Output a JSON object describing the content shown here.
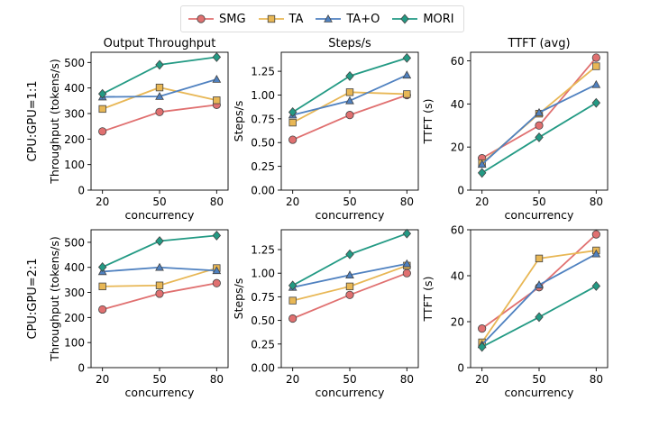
{
  "legend": [
    "SMG",
    "TA",
    "TA+O",
    "MORI"
  ],
  "colors": {
    "SMG": "#e07070",
    "TA": "#e8b755",
    "TA+O": "#4f81c0",
    "MORI": "#239a84"
  },
  "markers": {
    "SMG": "circle",
    "TA": "square",
    "TA+O": "triangle",
    "MORI": "diamond"
  },
  "row_labels": [
    "CPU:GPU=1:1",
    "CPU:GPU=2:1"
  ],
  "chart_data": [
    {
      "type": "line",
      "row": 0,
      "col": 0,
      "title": "Output Throughput",
      "xlabel": "concurrency",
      "ylabel": "Throughput (tokens/s)",
      "x": [
        20,
        50,
        80
      ],
      "xticks": [
        "20",
        "50",
        "80"
      ],
      "ylim": [
        0,
        540
      ],
      "yticks": [
        0,
        100,
        200,
        300,
        400,
        500
      ],
      "series": [
        {
          "name": "SMG",
          "values": [
            230,
            306,
            334
          ]
        },
        {
          "name": "TA",
          "values": [
            318,
            402,
            352
          ]
        },
        {
          "name": "TA+O",
          "values": [
            365,
            367,
            434
          ]
        },
        {
          "name": "MORI",
          "values": [
            377,
            491,
            521
          ]
        }
      ]
    },
    {
      "type": "line",
      "row": 0,
      "col": 1,
      "title": "Steps/s",
      "xlabel": "concurrency",
      "ylabel": "Steps/s",
      "x": [
        20,
        50,
        80
      ],
      "xticks": [
        "20",
        "50",
        "80"
      ],
      "ylim": [
        0,
        1.45
      ],
      "yticks": [
        "0.00",
        "0.25",
        "0.50",
        "0.75",
        "1.00",
        "1.25"
      ],
      "series": [
        {
          "name": "SMG",
          "values": [
            0.53,
            0.79,
            1.0
          ]
        },
        {
          "name": "TA",
          "values": [
            0.71,
            1.03,
            1.01
          ]
        },
        {
          "name": "TA+O",
          "values": [
            0.79,
            0.94,
            1.21
          ]
        },
        {
          "name": "MORI",
          "values": [
            0.82,
            1.2,
            1.39
          ]
        }
      ]
    },
    {
      "type": "line",
      "row": 0,
      "col": 2,
      "title": "TTFT (avg)",
      "xlabel": "concurrency",
      "ylabel": "TTFT (s)",
      "x": [
        20,
        50,
        80
      ],
      "xticks": [
        "20",
        "50",
        "80"
      ],
      "ylim": [
        0,
        64
      ],
      "yticks": [
        0,
        20,
        40,
        60
      ],
      "series": [
        {
          "name": "SMG",
          "values": [
            14.8,
            30.0,
            61.5
          ]
        },
        {
          "name": "TA",
          "values": [
            12.5,
            35.5,
            57.5
          ]
        },
        {
          "name": "TA+O",
          "values": [
            12.0,
            36.0,
            49.0
          ]
        },
        {
          "name": "MORI",
          "values": [
            8.0,
            24.5,
            40.5
          ]
        }
      ]
    },
    {
      "type": "line",
      "row": 1,
      "col": 0,
      "title": "",
      "xlabel": "concurrency",
      "ylabel": "Throughput (tokens/s)",
      "x": [
        20,
        50,
        80
      ],
      "xticks": [
        "20",
        "50",
        "80"
      ],
      "ylim": [
        0,
        550
      ],
      "yticks": [
        0,
        100,
        200,
        300,
        400,
        500
      ],
      "series": [
        {
          "name": "SMG",
          "values": [
            232,
            295,
            337
          ]
        },
        {
          "name": "TA",
          "values": [
            324,
            328,
            397
          ]
        },
        {
          "name": "TA+O",
          "values": [
            383,
            400,
            387
          ]
        },
        {
          "name": "MORI",
          "values": [
            401,
            505,
            527
          ]
        }
      ]
    },
    {
      "type": "line",
      "row": 1,
      "col": 1,
      "title": "",
      "xlabel": "concurrency",
      "ylabel": "Steps/s",
      "x": [
        20,
        50,
        80
      ],
      "xticks": [
        "20",
        "50",
        "80"
      ],
      "ylim": [
        0,
        1.46
      ],
      "yticks": [
        "0.00",
        "0.25",
        "0.50",
        "0.75",
        "1.00",
        "1.25"
      ],
      "series": [
        {
          "name": "SMG",
          "values": [
            0.52,
            0.77,
            1.0
          ]
        },
        {
          "name": "TA",
          "values": [
            0.71,
            0.86,
            1.08
          ]
        },
        {
          "name": "TA+O",
          "values": [
            0.85,
            0.98,
            1.1
          ]
        },
        {
          "name": "MORI",
          "values": [
            0.87,
            1.2,
            1.42
          ]
        }
      ]
    },
    {
      "type": "line",
      "row": 1,
      "col": 2,
      "title": "",
      "xlabel": "concurrency",
      "ylabel": "TTFT (s)",
      "x": [
        20,
        50,
        80
      ],
      "xticks": [
        "20",
        "50",
        "80"
      ],
      "ylim": [
        0,
        60
      ],
      "yticks": [
        0,
        20,
        40,
        60
      ],
      "series": [
        {
          "name": "SMG",
          "values": [
            17.0,
            35.0,
            58.0
          ]
        },
        {
          "name": "TA",
          "values": [
            11.0,
            47.5,
            51.0
          ]
        },
        {
          "name": "TA+O",
          "values": [
            10.0,
            36.0,
            49.5
          ]
        },
        {
          "name": "MORI",
          "values": [
            9.0,
            22.0,
            35.5
          ]
        }
      ]
    }
  ]
}
